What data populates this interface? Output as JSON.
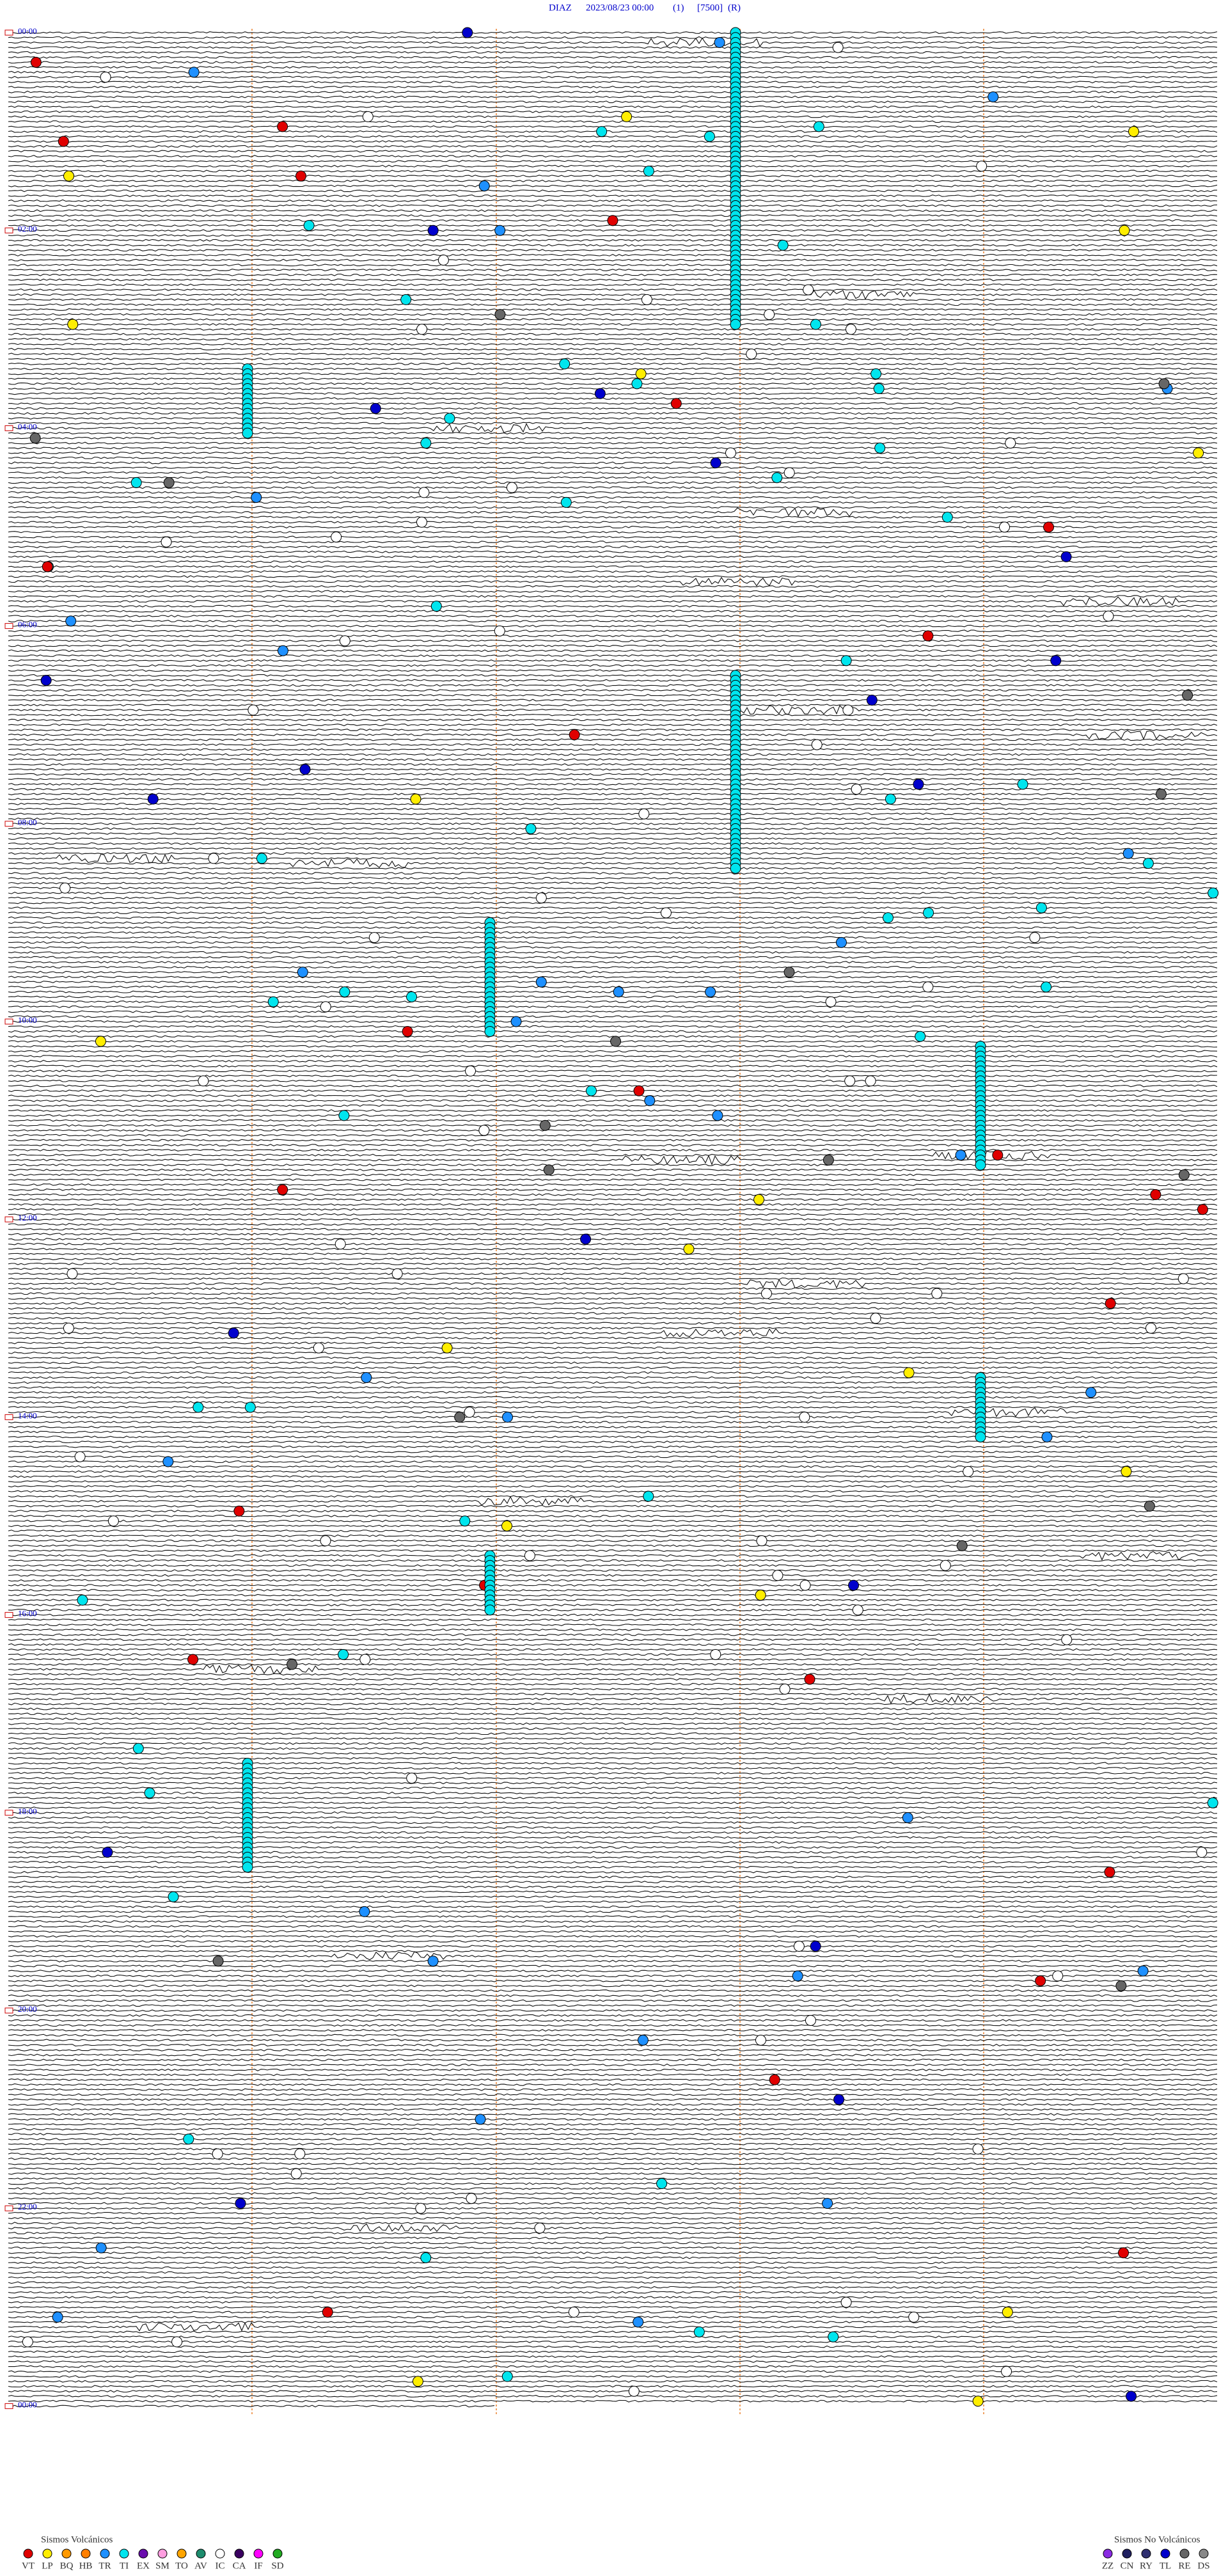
{
  "header": {
    "station": "DIAZ",
    "datetime": "2023/08/23 00:00",
    "channel": "(1)",
    "scale": "[7500]",
    "mode": "(R)"
  },
  "time_labels": [
    "00:00",
    "02:00",
    "04:00",
    "06:00",
    "08:00",
    "10:00",
    "12:00",
    "14:00",
    "16:00",
    "18:00",
    "20:00",
    "22:00",
    "00:00"
  ],
  "legend": {
    "volcanic": {
      "title": "Sismos Volcánicos",
      "items": [
        {
          "code": "VT",
          "color": "#e00000"
        },
        {
          "code": "LP",
          "color": "#ffee00"
        },
        {
          "code": "BQ",
          "color": "#ff9900"
        },
        {
          "code": "HB",
          "color": "#ff7f00"
        },
        {
          "code": "TR",
          "color": "#1e90ff"
        },
        {
          "code": "TI",
          "color": "#00e5ee"
        },
        {
          "code": "EX",
          "color": "#6a0dad"
        },
        {
          "code": "SM",
          "color": "#ff9ee0"
        },
        {
          "code": "TO",
          "color": "#ffa500"
        },
        {
          "code": "AV",
          "color": "#1e8c6e"
        },
        {
          "code": "IC",
          "color": "#ffffff"
        },
        {
          "code": "CA",
          "color": "#3a0060"
        },
        {
          "code": "IF",
          "color": "#ff00ff"
        },
        {
          "code": "SD",
          "color": "#22aa22"
        }
      ]
    },
    "non_volcanic": {
      "title": "Sismos No Volcánicos",
      "items": [
        {
          "code": "ZZ",
          "color": "#8a2be2"
        },
        {
          "code": "CN",
          "color": "#202060"
        },
        {
          "code": "RY",
          "color": "#303070"
        },
        {
          "code": "TL",
          "color": "#0000cc"
        },
        {
          "code": "RE",
          "color": "#666666"
        },
        {
          "code": "DS",
          "color": "#888888"
        }
      ]
    }
  }
}
